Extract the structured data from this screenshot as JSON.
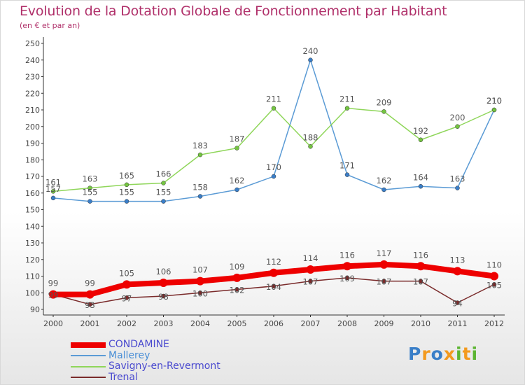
{
  "header": {
    "title": "Evolution de la Dotation Globale de Fonctionnement par Habitant",
    "subtitle": "(en € et par an)"
  },
  "logo": {
    "text": "Proxiti"
  },
  "chart_data": {
    "type": "line",
    "title": "Evolution de la Dotation Globale de Fonctionnement par Habitant",
    "subtitle": "(en € et par an)",
    "xlabel": "",
    "ylabel": "",
    "ylim": [
      90,
      250
    ],
    "ytick_step": 10,
    "grid": false,
    "legend": "bottom-left",
    "x": [
      "2000",
      "2001",
      "2002",
      "2003",
      "2004",
      "2005",
      "2006",
      "2007",
      "2008",
      "2009",
      "2010",
      "2011",
      "2012"
    ],
    "series": [
      {
        "name": "CONDAMINE",
        "color": "#ee0000",
        "values": [
          99,
          99,
          105,
          106,
          107,
          109,
          112,
          114,
          116,
          117,
          116,
          113,
          110
        ]
      },
      {
        "name": "Mallerey",
        "color": "#5b9bd5",
        "values": [
          157,
          155,
          155,
          155,
          158,
          162,
          170,
          240,
          171,
          162,
          164,
          163,
          210
        ]
      },
      {
        "name": "Savigny-en-Revermont",
        "color": "#8fd65a",
        "values": [
          161,
          163,
          165,
          166,
          183,
          187,
          211,
          188,
          211,
          209,
          192,
          200,
          210
        ]
      },
      {
        "name": "Trenal",
        "color": "#7a2b2b",
        "values": [
          99,
          93,
          97,
          98,
          100,
          102,
          104,
          107,
          109,
          107,
          107,
          94,
          105
        ]
      }
    ]
  }
}
